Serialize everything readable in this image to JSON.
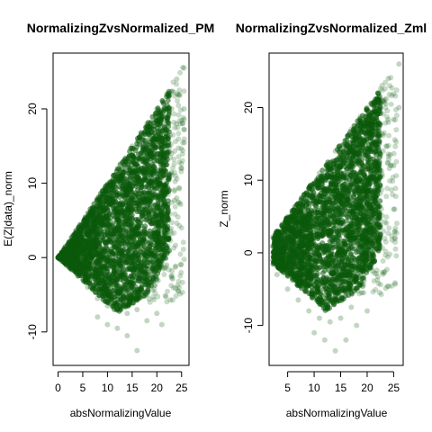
{
  "chart_data": [
    {
      "type": "scatter",
      "title": "NormalizingZvsNormalized_PM",
      "xlabel": "absNormalizingValue",
      "ylabel": "E(Z|data)_norm",
      "xlim": [
        -1,
        26.5
      ],
      "ylim": [
        -14.5,
        27.5
      ],
      "x_ticks": [
        0,
        5,
        10,
        15,
        20,
        25
      ],
      "y_ticks": [
        -10,
        0,
        10,
        20
      ],
      "grid": false,
      "legend": "none",
      "point_color": "#0b5a0b",
      "series": [
        {
          "values_description_points": [
            [
              0,
              0
            ],
            [
              3,
              3
            ],
            [
              6,
              6
            ],
            [
              9,
              9
            ],
            [
              12,
              12
            ],
            [
              15,
              15
            ],
            [
              18,
              18
            ],
            [
              20,
              20
            ],
            [
              22,
              22
            ],
            [
              24,
              24
            ],
            [
              25.5,
              25.5
            ],
            [
              2,
              -1
            ],
            [
              4,
              -2.5
            ],
            [
              6,
              -4
            ],
            [
              8,
              -5.5
            ],
            [
              10,
              -6.5
            ],
            [
              12,
              -7
            ],
            [
              14,
              -7.5
            ],
            [
              16,
              -7
            ],
            [
              18,
              -5
            ],
            [
              20,
              -3
            ],
            [
              22,
              -1
            ],
            [
              8,
              -8
            ],
            [
              10,
              -9
            ],
            [
              12,
              -9.5
            ],
            [
              14,
              -10.5
            ],
            [
              16,
              -12.5
            ],
            [
              18,
              -8.5
            ],
            [
              20,
              -7.5
            ],
            [
              21,
              -9
            ],
            [
              22,
              10
            ],
            [
              23,
              14
            ],
            [
              24,
              18
            ],
            [
              25,
              12
            ],
            [
              25.5,
              20
            ],
            [
              24,
              8
            ],
            [
              23,
              20
            ],
            [
              22,
              4
            ]
          ]
        }
      ]
    },
    {
      "type": "scatter",
      "title": "NormalizingZvsNormalized_Zml",
      "xlabel": "absNormalizingValue",
      "ylabel": "Z_norm",
      "xlim": [
        1.5,
        26.8
      ],
      "ylim": [
        -15.5,
        27.5
      ],
      "x_ticks": [
        5,
        10,
        15,
        20,
        25
      ],
      "y_ticks": [
        -10,
        0,
        10,
        20
      ],
      "grid": false,
      "legend": "none",
      "point_color": "#0b5a0b",
      "series": [
        {
          "values_description_points": [
            [
              2.2,
              2.2
            ],
            [
              5,
              5
            ],
            [
              8,
              8
            ],
            [
              11,
              11
            ],
            [
              14,
              14
            ],
            [
              17,
              17
            ],
            [
              20,
              20
            ],
            [
              22,
              22
            ],
            [
              24,
              24
            ],
            [
              26,
              26
            ],
            [
              2.2,
              -1
            ],
            [
              3,
              -3
            ],
            [
              5,
              -5
            ],
            [
              7,
              -6.5
            ],
            [
              9,
              -8
            ],
            [
              11,
              -9
            ],
            [
              13,
              -9.5
            ],
            [
              15,
              -9
            ],
            [
              17,
              -7.5
            ],
            [
              19,
              -5.5
            ],
            [
              21,
              -2.5
            ],
            [
              10,
              -11
            ],
            [
              12,
              -12
            ],
            [
              14,
              -13.5
            ],
            [
              16,
              -12
            ],
            [
              18,
              -10
            ],
            [
              20,
              -8
            ],
            [
              22,
              10
            ],
            [
              23,
              14
            ],
            [
              24,
              18
            ],
            [
              25,
              12
            ],
            [
              26,
              20
            ],
            [
              25,
              6
            ],
            [
              23,
              21
            ],
            [
              22,
              4
            ]
          ]
        }
      ]
    }
  ]
}
